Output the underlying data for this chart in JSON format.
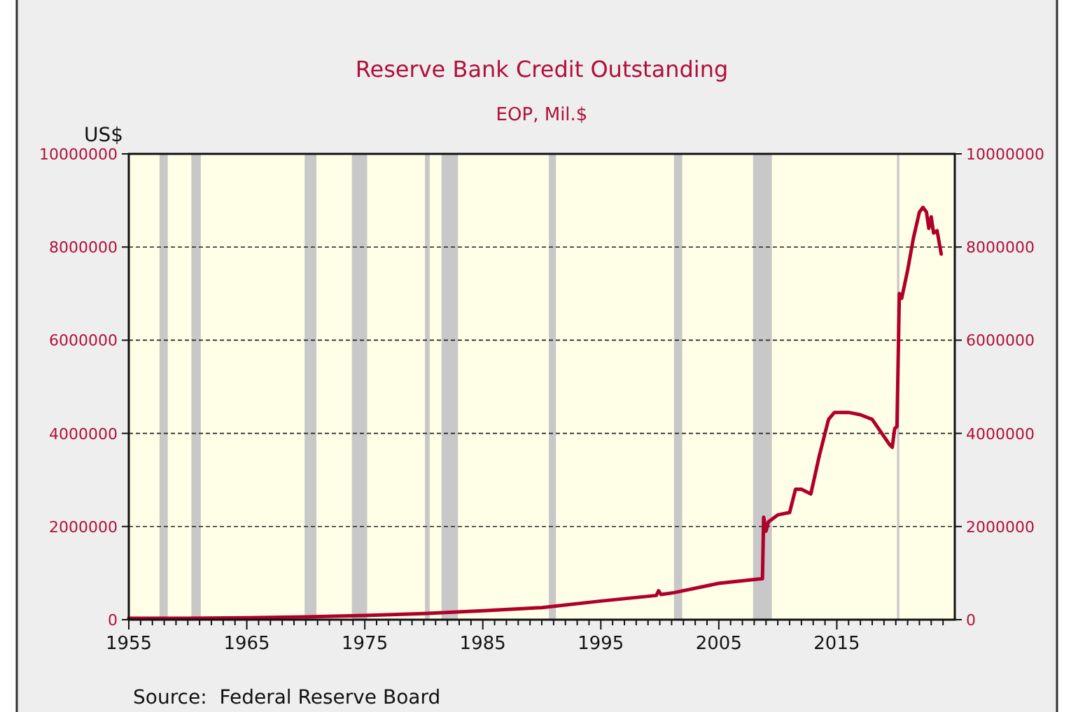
{
  "chart_data": {
    "type": "line",
    "title": "Reserve Bank Credit Outstanding",
    "subtitle": "EOP, Mil.$",
    "ylabel": "US$",
    "annotations": [
      "Source:  Federal Reserve Board"
    ],
    "series": [
      {
        "color": "#b0002a",
        "x": [
          1955,
          1960,
          1965,
          1970,
          1975,
          1980,
          1985,
          1990,
          1995,
          1999.7,
          1999.9,
          2000.1,
          2001.2,
          2005,
          2008.6,
          2008.7,
          2008.8,
          2009,
          2009.2,
          2010,
          2011,
          2011.5,
          2012,
          2012.8,
          2013.5,
          2014.3,
          2014.8,
          2016,
          2017,
          2018,
          2019.5,
          2019.7,
          2019.9,
          2020.1,
          2020.3,
          2020.5,
          2021,
          2021.5,
          2022,
          2022.3,
          2022.6,
          2022.8,
          2023,
          2023.2,
          2023.5,
          2023.85
        ],
        "values": [
          30000,
          30000,
          40000,
          60000,
          90000,
          130000,
          190000,
          260000,
          400000,
          520000,
          620000,
          540000,
          580000,
          780000,
          880000,
          880000,
          2200000,
          1900000,
          2100000,
          2250000,
          2300000,
          2800000,
          2800000,
          2700000,
          3500000,
          4300000,
          4450000,
          4450000,
          4400000,
          4300000,
          3750000,
          3700000,
          4100000,
          4150000,
          7000000,
          6900000,
          7500000,
          8200000,
          8750000,
          8850000,
          8750000,
          8400000,
          8650000,
          8300000,
          8350000,
          7850000
        ]
      }
    ],
    "xlim": [
      1955,
      2025
    ],
    "xticks": [
      1955,
      {
        "value": 1956,
        "label": null
      },
      {
        "value": 1957,
        "label": null
      },
      {
        "value": 1958,
        "label": null
      },
      {
        "value": 1959,
        "label": null
      },
      {
        "value": 1960,
        "label": null
      },
      {
        "value": 1961,
        "label": null
      },
      {
        "value": 1962,
        "label": null
      },
      {
        "value": 1963,
        "label": null
      },
      {
        "value": 1964,
        "label": null
      },
      1965,
      {
        "value": 1966,
        "label": null
      },
      {
        "value": 1967,
        "label": null
      },
      {
        "value": 1968,
        "label": null
      },
      {
        "value": 1969,
        "label": null
      },
      {
        "value": 1970,
        "label": null
      },
      {
        "value": 1971,
        "label": null
      },
      {
        "value": 1972,
        "label": null
      },
      {
        "value": 1973,
        "label": null
      },
      {
        "value": 1974,
        "label": null
      },
      1975,
      {
        "value": 1976,
        "label": null
      },
      {
        "value": 1977,
        "label": null
      },
      {
        "value": 1978,
        "label": null
      },
      {
        "value": 1979,
        "label": null
      },
      {
        "value": 1980,
        "label": null
      },
      {
        "value": 1981,
        "label": null
      },
      {
        "value": 1982,
        "label": null
      },
      {
        "value": 1983,
        "label": null
      },
      {
        "value": 1984,
        "label": null
      },
      1985,
      {
        "value": 1986,
        "label": null
      },
      {
        "value": 1987,
        "label": null
      },
      {
        "value": 1988,
        "label": null
      },
      {
        "value": 1989,
        "label": null
      },
      {
        "value": 1990,
        "label": null
      },
      {
        "value": 1991,
        "label": null
      },
      {
        "value": 1992,
        "label": null
      },
      {
        "value": 1993,
        "label": null
      },
      {
        "value": 1994,
        "label": null
      },
      1995,
      {
        "value": 1996,
        "label": null
      },
      {
        "value": 1997,
        "label": null
      },
      {
        "value": 1998,
        "label": null
      },
      {
        "value": 1999,
        "label": null
      },
      {
        "value": 2000,
        "label": null
      },
      {
        "value": 2001,
        "label": null
      },
      {
        "value": 2002,
        "label": null
      },
      {
        "value": 2003,
        "label": null
      },
      {
        "value": 2004,
        "label": null
      },
      2005,
      {
        "value": 2006,
        "label": null
      },
      {
        "value": 2007,
        "label": null
      },
      {
        "value": 2008,
        "label": null
      },
      {
        "value": 2009,
        "label": null
      },
      {
        "value": 2010,
        "label": null
      },
      {
        "value": 2011,
        "label": null
      },
      {
        "value": 2012,
        "label": null
      },
      {
        "value": 2013,
        "label": null
      },
      {
        "value": 2014,
        "label": null
      },
      2015,
      {
        "value": 2016,
        "label": null
      },
      {
        "value": 2017,
        "label": null
      },
      {
        "value": 2018,
        "label": null
      },
      {
        "value": 2019,
        "label": null
      },
      {
        "value": 2020,
        "label": null
      },
      {
        "value": 2021,
        "label": null
      },
      {
        "value": 2022,
        "label": null
      },
      {
        "value": 2023,
        "label": null
      },
      {
        "value": 2024,
        "label": null
      }
    ],
    "ylim": [
      0,
      10000000
    ],
    "yticks": [
      0,
      2000000,
      4000000,
      6000000,
      8000000,
      10000000
    ],
    "y2lim": [
      0,
      10000000
    ],
    "y2ticks": [
      0,
      2000000,
      4000000,
      6000000,
      8000000,
      10000000
    ],
    "grid": "y",
    "marker": "none",
    "line_style": "solid",
    "bands": [
      {
        "axis": "x",
        "from": 1957.6,
        "to": 1958.3,
        "color": "#c8c8c8"
      },
      {
        "axis": "x",
        "from": 1960.3,
        "to": 1961.1,
        "color": "#c8c8c8"
      },
      {
        "axis": "x",
        "from": 1969.9,
        "to": 1970.9,
        "color": "#c8c8c8"
      },
      {
        "axis": "x",
        "from": 1973.9,
        "to": 1975.2,
        "color": "#c8c8c8"
      },
      {
        "axis": "x",
        "from": 1980.1,
        "to": 1980.5,
        "color": "#c8c8c8"
      },
      {
        "axis": "x",
        "from": 1981.5,
        "to": 1982.9,
        "color": "#c8c8c8"
      },
      {
        "axis": "x",
        "from": 1990.6,
        "to": 1991.2,
        "color": "#c8c8c8"
      },
      {
        "axis": "x",
        "from": 2001.2,
        "to": 2001.9,
        "color": "#c8c8c8"
      },
      {
        "axis": "x",
        "from": 2007.9,
        "to": 2009.5,
        "color": "#c8c8c8"
      },
      {
        "axis": "x",
        "from": 2020.1,
        "to": 2020.3,
        "color": "#c8c8c8"
      }
    ]
  }
}
